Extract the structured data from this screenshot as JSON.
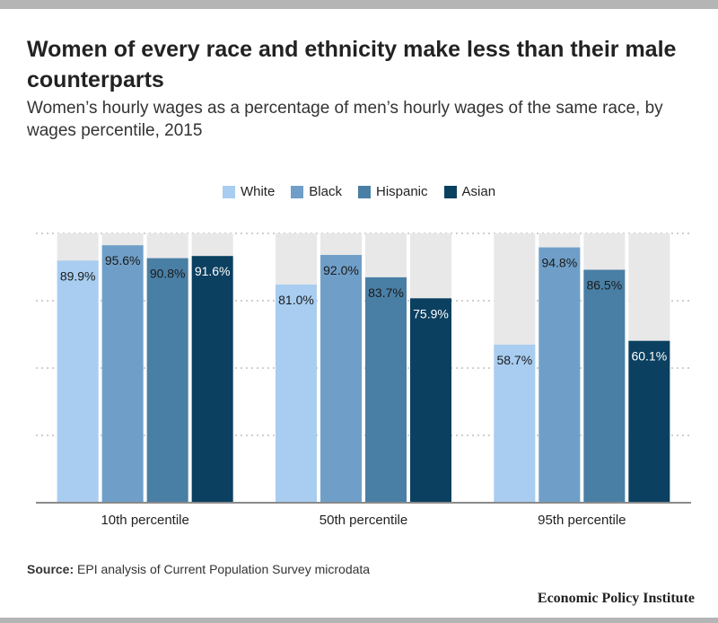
{
  "title": "Women of every race and ethnicity make less than their male counterparts",
  "subtitle": "Women’s hourly wages as a percentage of men’s hourly wages of the same race, by wages percentile, 2015",
  "source_label": "Source:",
  "source_text": " EPI analysis of Current Population Survey microdata",
  "brand": "Economic Policy Institute",
  "chart_data": {
    "type": "bar",
    "categories": [
      "10th percentile",
      "50th percentile",
      "95th percentile"
    ],
    "series": [
      {
        "name": "White",
        "color": "#a8cdf0",
        "values": [
          89.9,
          81.0,
          58.7
        ],
        "labels": [
          "89.9%",
          "81.0%",
          "58.7%"
        ]
      },
      {
        "name": "Black",
        "color": "#6f9fc8",
        "values": [
          95.6,
          92.0,
          94.8
        ],
        "labels": [
          "95.6%",
          "92.0%",
          "94.8%"
        ]
      },
      {
        "name": "Hispanic",
        "color": "#4a7fa5",
        "values": [
          90.8,
          83.7,
          86.5
        ],
        "labels": [
          "90.8%",
          "83.7%",
          "86.5%"
        ]
      },
      {
        "name": "Asian",
        "color": "#0b4060",
        "values": [
          91.6,
          75.9,
          60.1
        ],
        "labels": [
          "91.6%",
          "75.9%",
          "60.1%"
        ]
      }
    ],
    "ylim": [
      0,
      100
    ],
    "grid": true,
    "background_bar_color": "#e8e8e8",
    "legend_position": "top-center"
  }
}
